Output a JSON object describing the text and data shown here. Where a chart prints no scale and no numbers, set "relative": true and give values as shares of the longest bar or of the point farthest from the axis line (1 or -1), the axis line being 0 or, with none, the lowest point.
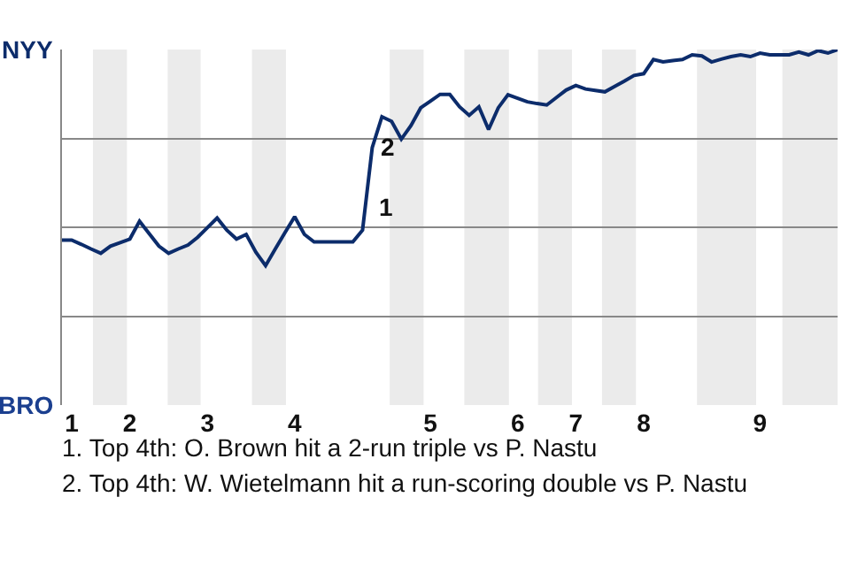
{
  "chart_data": {
    "type": "line",
    "relative": true,
    "categories": [
      null,
      "1",
      null,
      null,
      null,
      null,
      null,
      "2",
      null,
      null,
      null,
      null,
      null,
      null,
      null,
      "3",
      null,
      null,
      null,
      null,
      null,
      null,
      null,
      null,
      "4",
      null,
      null,
      null,
      null,
      null,
      null,
      null,
      null,
      null,
      null,
      null,
      null,
      null,
      "5",
      null,
      null,
      null,
      null,
      null,
      null,
      null,
      null,
      "6",
      null,
      null,
      null,
      null,
      null,
      "7",
      null,
      null,
      null,
      null,
      null,
      null,
      "8",
      null,
      null,
      null,
      null,
      null,
      null,
      null,
      null,
      null,
      null,
      null,
      "9",
      null,
      null,
      null,
      null,
      null,
      null,
      null,
      null
    ],
    "series": [
      {
        "color": "#0c2c6b",
        "values": [
          0.464,
          0.464,
          0.452,
          0.439,
          0.427,
          0.447,
          0.457,
          0.467,
          0.517,
          0.482,
          0.447,
          0.427,
          0.439,
          0.45,
          0.472,
          0.499,
          0.526,
          0.492,
          0.467,
          0.48,
          0.43,
          0.392,
          0.439,
          0.485,
          0.53,
          0.48,
          0.459,
          0.459,
          0.459,
          0.459,
          0.459,
          0.492,
          0.724,
          0.811,
          0.798,
          0.748,
          0.786,
          0.836,
          0.855,
          0.874,
          0.874,
          0.839,
          0.815,
          0.839,
          0.775,
          0.836,
          0.873,
          0.863,
          0.853,
          0.848,
          0.844,
          0.865,
          0.886,
          0.899,
          0.889,
          0.885,
          0.881,
          0.896,
          0.911,
          0.927,
          0.932,
          0.972,
          0.965,
          0.969,
          0.972,
          0.985,
          0.982,
          0.965,
          0.973,
          0.98,
          0.985,
          0.98,
          0.99,
          0.985,
          0.985,
          0.985,
          0.993,
          0.985,
          0.997,
          0.99,
          1
        ]
      }
    ],
    "grid": "y",
    "marker": "none",
    "line_style": "solid",
    "annotations": [
      "NYY",
      "BRO",
      "1",
      "2",
      "1. Top 4th: O. Brown hit a 2-run triple vs P. Nastu",
      "2. Top 4th: W. Wietelmann hit a run-scoring double vs P. Nastu"
    ]
  }
}
